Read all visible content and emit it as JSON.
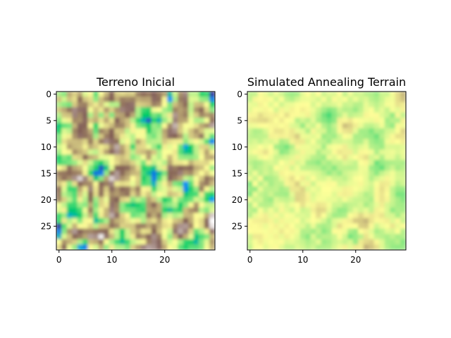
{
  "chart_data": [
    {
      "type": "heatmap",
      "title": "Terreno Inicial",
      "grid_size": [
        30,
        30
      ],
      "x_ticks": [
        "0",
        "10",
        "20"
      ],
      "y_ticks": [
        "0",
        "5",
        "10",
        "15",
        "20",
        "25"
      ],
      "xlim": [
        -0.5,
        29.5
      ],
      "ylim": [
        29.5,
        -0.5
      ],
      "colormap": "terrain",
      "interpolation": "smooth",
      "value_range": [
        0,
        1
      ],
      "seed": 7,
      "smoothing": "light",
      "dominant_colors": [
        "#3fd27a",
        "#f5ef8a",
        "#8a6d5f",
        "#1a8cf0",
        "#bfb1ad"
      ]
    },
    {
      "type": "heatmap",
      "title": "Simulated Annealing Terrain",
      "grid_size": [
        30,
        30
      ],
      "x_ticks": [
        "0",
        "10",
        "20"
      ],
      "y_ticks": [
        "0",
        "5",
        "10",
        "15",
        "20",
        "25"
      ],
      "xlim": [
        -0.5,
        29.5
      ],
      "ylim": [
        29.5,
        -0.5
      ],
      "colormap": "terrain",
      "interpolation": "smooth",
      "value_range": [
        0.32,
        0.62
      ],
      "seed": 19,
      "smoothing": "vertical",
      "dominant_colors": [
        "#e6d98e",
        "#a89270",
        "#f8f29a",
        "#8fe77f"
      ]
    }
  ]
}
